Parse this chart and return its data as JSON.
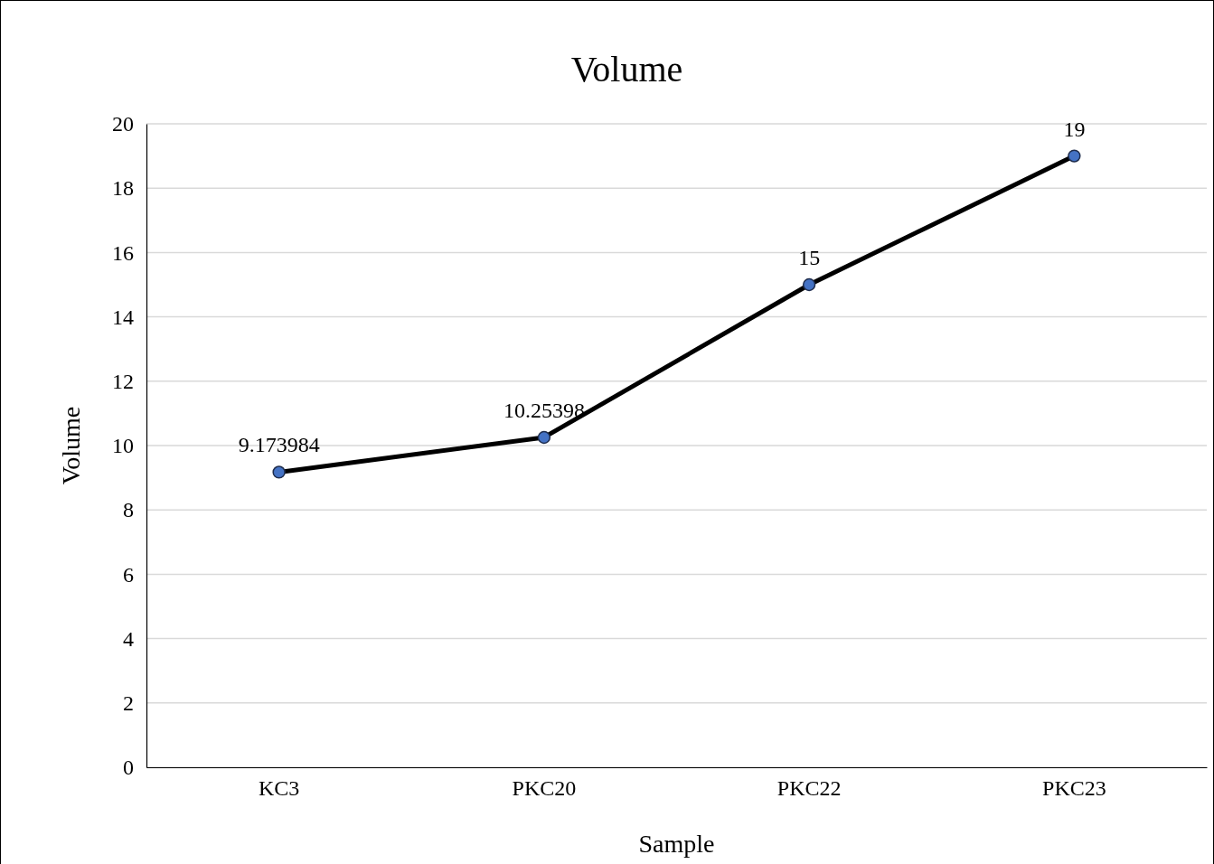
{
  "chart_data": {
    "type": "line",
    "title": "Volume",
    "xlabel": "Sample",
    "ylabel": "Volume",
    "categories": [
      "KC3",
      "PKC20",
      "PKC22",
      "PKC23"
    ],
    "series": [
      {
        "color": "#000000",
        "values": [
          9.173984,
          10.25398,
          15,
          19
        ]
      }
    ],
    "ylim": [
      0,
      20
    ],
    "yticks": [
      0,
      2,
      4,
      6,
      8,
      10,
      12,
      14,
      16,
      18,
      20
    ],
    "grid": "y",
    "marker": "circle",
    "line_style": "solid",
    "data_labels": true
  }
}
